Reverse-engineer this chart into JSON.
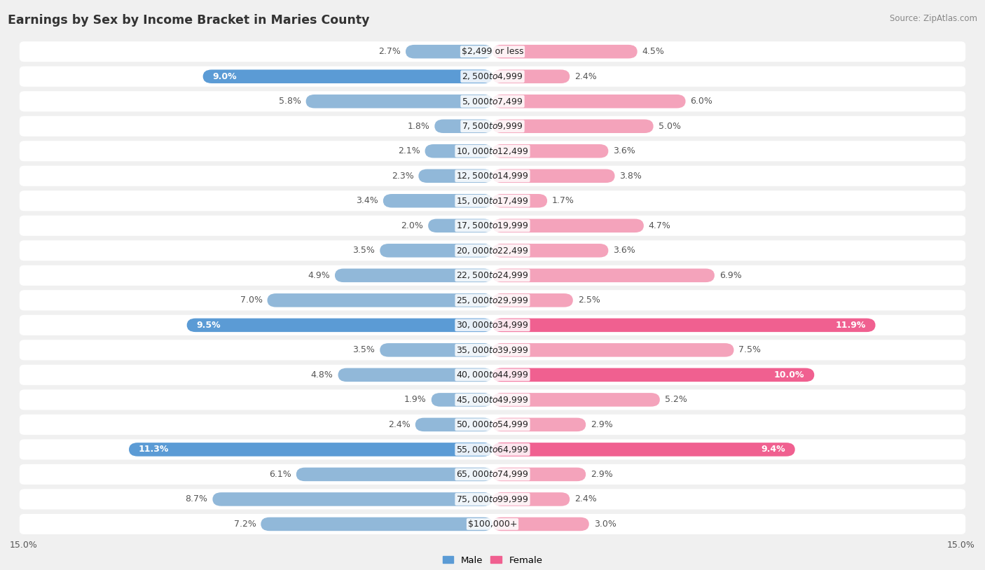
{
  "title": "Earnings by Sex by Income Bracket in Maries County",
  "source": "Source: ZipAtlas.com",
  "categories": [
    "$2,499 or less",
    "$2,500 to $4,999",
    "$5,000 to $7,499",
    "$7,500 to $9,999",
    "$10,000 to $12,499",
    "$12,500 to $14,999",
    "$15,000 to $17,499",
    "$17,500 to $19,999",
    "$20,000 to $22,499",
    "$22,500 to $24,999",
    "$25,000 to $29,999",
    "$30,000 to $34,999",
    "$35,000 to $39,999",
    "$40,000 to $44,999",
    "$45,000 to $49,999",
    "$50,000 to $54,999",
    "$55,000 to $64,999",
    "$65,000 to $74,999",
    "$75,000 to $99,999",
    "$100,000+"
  ],
  "male_values": [
    2.7,
    9.0,
    5.8,
    1.8,
    2.1,
    2.3,
    3.4,
    2.0,
    3.5,
    4.9,
    7.0,
    9.5,
    3.5,
    4.8,
    1.9,
    2.4,
    11.3,
    6.1,
    8.7,
    7.2
  ],
  "female_values": [
    4.5,
    2.4,
    6.0,
    5.0,
    3.6,
    3.8,
    1.7,
    4.7,
    3.6,
    6.9,
    2.5,
    11.9,
    7.5,
    10.0,
    5.2,
    2.9,
    9.4,
    2.9,
    2.4,
    3.0
  ],
  "male_color": "#91b8d9",
  "female_color": "#f4a3bb",
  "male_highlight_color": "#5b9bd5",
  "female_highlight_color": "#f06090",
  "male_label_threshold": 9.0,
  "female_label_threshold": 9.0,
  "xlim": 15.0,
  "bar_height": 0.55,
  "bg_color": "#f0f0f0",
  "row_color": "#ffffff",
  "label_fontsize": 9.0,
  "title_fontsize": 12.5,
  "source_fontsize": 8.5
}
